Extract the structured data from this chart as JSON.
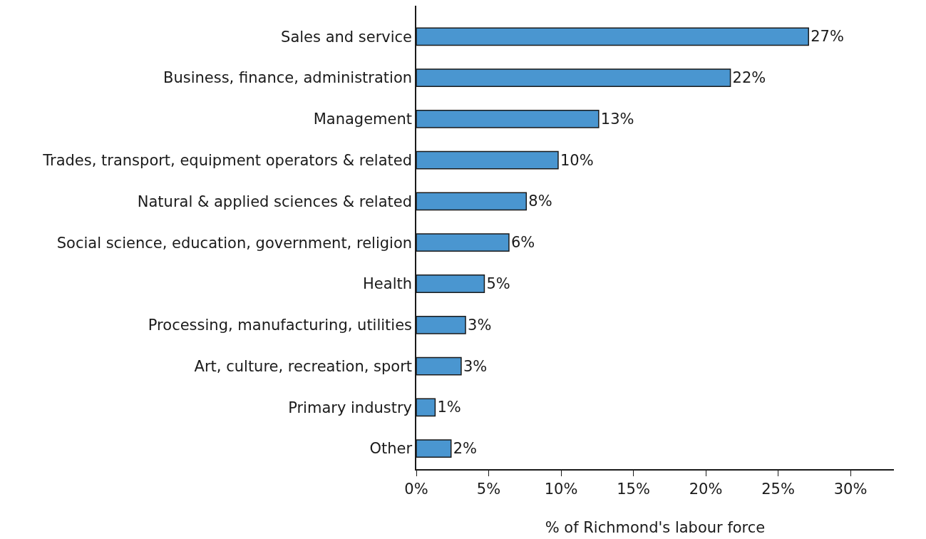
{
  "chart_data": {
    "type": "bar",
    "orientation": "horizontal",
    "xlabel": "% of Richmond's labour force",
    "categories": [
      "Sales and service",
      "Business, finance, administration",
      "Management",
      "Trades, transport, equipment operators & related",
      "Natural & applied sciences & related",
      "Social science, education, government, religion",
      "Health",
      "Processing, manufacturing, utilities",
      "Art, culture, recreation, sport",
      "Primary industry",
      "Other"
    ],
    "values": [
      27.1,
      21.7,
      12.6,
      9.8,
      7.6,
      6.4,
      4.7,
      3.4,
      3.1,
      1.3,
      2.4
    ],
    "value_labels": [
      "27%",
      "22%",
      "13%",
      "10%",
      "8%",
      "6%",
      "5%",
      "3%",
      "3%",
      "1%",
      "2%"
    ],
    "color": "#4a96d0",
    "xlim": [
      0,
      33
    ],
    "xticks": [
      {
        "value": 0,
        "label": "0%"
      },
      {
        "value": 5,
        "label": "5%"
      },
      {
        "value": 10,
        "label": "10%"
      },
      {
        "value": 15,
        "label": "15%"
      },
      {
        "value": 20,
        "label": "20%"
      },
      {
        "value": 25,
        "label": "25%"
      },
      {
        "value": 30,
        "label": "30%"
      }
    ],
    "legend": false
  }
}
